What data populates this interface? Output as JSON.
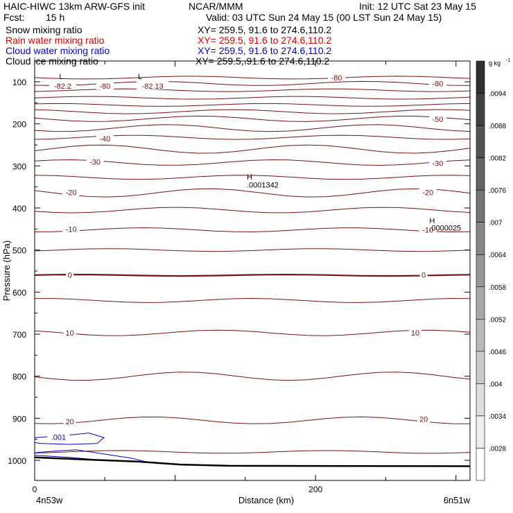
{
  "header": {
    "model": "HAIC-HIWC 13km ARW-GFS init",
    "org": "NCAR/MMM",
    "init": "Init: 12 UTC Sat 23 May 15",
    "fcst_label": "Fcst:",
    "fcst_value": "15 h",
    "valid": "Valid: 03 UTC Sun 24 May 15 (00 LST Sun 24 May 15)",
    "fields": [
      {
        "name": "Snow mixing ratio",
        "xy": "XY= 259.5, 91.6 to 274.6,110.2",
        "color": "#000000"
      },
      {
        "name": "Rain water mixing ratio",
        "xy": "XY= 259.5, 91.6 to 274.6,110.2",
        "color": "#d40000"
      },
      {
        "name": "Cloud water mixing ratio",
        "xy": "XY= 259.5, 91.6 to 274.6,110.2",
        "color": "#0000c8"
      },
      {
        "name": "Cloud ice mixing ratio",
        "xy": "XY= 259.5, 91.6 to 274.6,110.2",
        "color": "#000000"
      }
    ]
  },
  "chart_data": {
    "type": "contour",
    "ylabel": "Pressure (hPa)",
    "xlabel": "Distance (km)",
    "x_left_label": "4n53w",
    "x_right_label": "6n51w",
    "x_ticks": [
      {
        "value": 0,
        "label": "0"
      },
      {
        "value": 200,
        "label": "200"
      }
    ],
    "xlim": [
      0,
      310
    ],
    "y_ticks": [
      100,
      200,
      300,
      400,
      500,
      600,
      700,
      800,
      900,
      1000
    ],
    "ylim": [
      1050,
      50
    ],
    "temperature_labels": [
      {
        "x": 20,
        "p": 110,
        "text": "-82.2"
      },
      {
        "x": 50,
        "p": 110,
        "text": "-80"
      },
      {
        "x": 84,
        "p": 110,
        "text": "-82.13"
      },
      {
        "x": 215,
        "p": 90,
        "text": "-80"
      },
      {
        "x": 287,
        "p": 104,
        "text": "-80"
      },
      {
        "x": 287,
        "p": 189,
        "text": "-50"
      },
      {
        "x": 50,
        "p": 235,
        "text": "-40"
      },
      {
        "x": 43,
        "p": 290,
        "text": "-30"
      },
      {
        "x": 287,
        "p": 294,
        "text": "-30"
      },
      {
        "x": 26,
        "p": 363,
        "text": "-20"
      },
      {
        "x": 280,
        "p": 363,
        "text": "-20"
      },
      {
        "x": 26,
        "p": 450,
        "text": "-10"
      },
      {
        "x": 280,
        "p": 452,
        "text": "-10"
      },
      {
        "x": 25,
        "p": 559,
        "text": "0"
      },
      {
        "x": 277,
        "p": 559,
        "text": "0"
      },
      {
        "x": 25,
        "p": 697,
        "text": "10"
      },
      {
        "x": 271,
        "p": 697,
        "text": "10"
      },
      {
        "x": 25,
        "p": 908,
        "text": "20"
      },
      {
        "x": 277,
        "p": 902,
        "text": "20"
      }
    ],
    "markers": [
      {
        "x": 19,
        "p": 87,
        "text": "L"
      },
      {
        "x": 75,
        "p": 87,
        "text": "L"
      },
      {
        "x": 153,
        "p": 326,
        "text": "H"
      },
      {
        "x": 153,
        "p": 345,
        "text": ".0001342"
      },
      {
        "x": 283,
        "p": 430,
        "text": "H"
      },
      {
        "x": 283,
        "p": 447,
        "text": ".0000025"
      }
    ],
    "cloud_water_label": {
      "x": 17,
      "p": 945,
      "text": ".001"
    },
    "colorbar": {
      "unit_label": "g kg",
      "unit_exp": "-1",
      "labels": [
        ".0094",
        ".0088",
        ".0082",
        ".0076",
        ".007",
        ".0064",
        ".0058",
        ".0052",
        ".0046",
        ".004",
        ".0034",
        ".0028"
      ]
    }
  }
}
